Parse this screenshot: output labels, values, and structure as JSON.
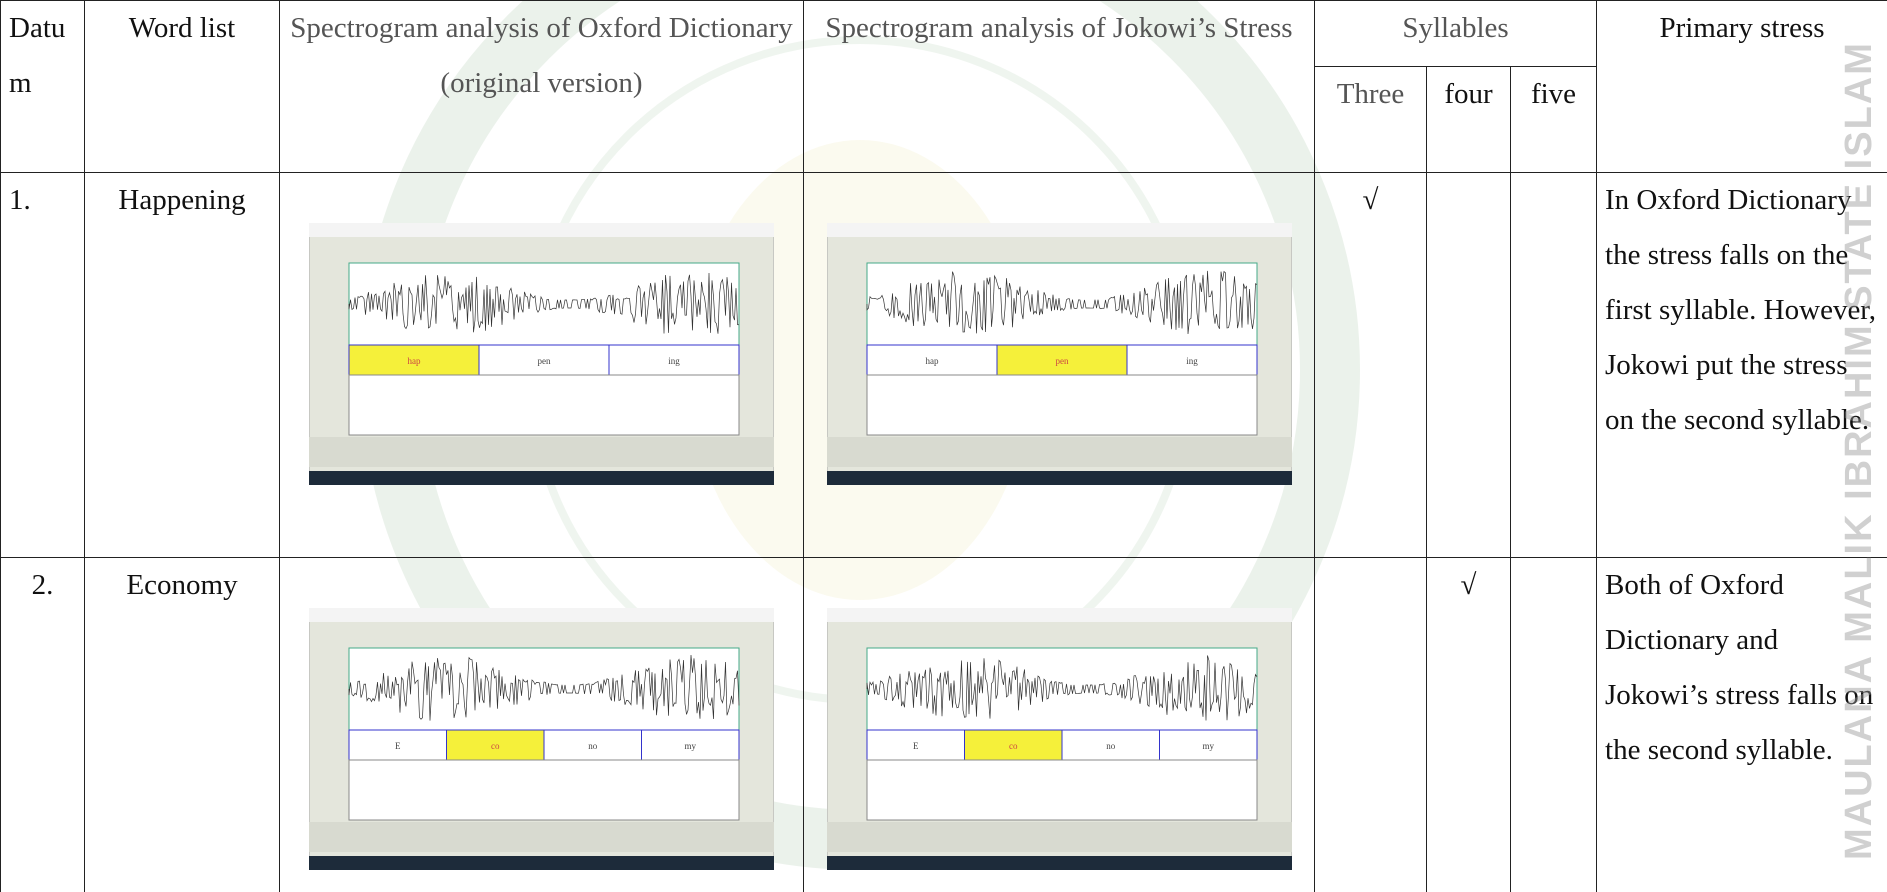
{
  "table": {
    "header": {
      "datum": "Datum",
      "word_list": "Word list",
      "oxford": "Spectrogram analysis of Oxford Dictionary (original version)",
      "jokowi": "Spectrogram analysis of Jokowi’s Stress",
      "syllables": "Syllables",
      "syllable_counts": [
        "Three",
        "four",
        "five"
      ],
      "primary_stress": "Primary stress"
    },
    "rows": [
      {
        "number": "1.",
        "word": "Happening",
        "oxford_syllables": [
          "hap",
          "pen",
          "ing"
        ],
        "oxford_stressed": 0,
        "jokowi_syllables": [
          "hap",
          "pen",
          "ing"
        ],
        "jokowi_stressed": 1,
        "checks": [
          "√",
          "",
          ""
        ],
        "primary_stress": "In Oxford Dictionary the stress falls on the first syllable. However, Jokowi put the stress on the second syllable."
      },
      {
        "number": "2.",
        "word": "Economy",
        "oxford_syllables": [
          "E",
          "co",
          "no",
          "my"
        ],
        "oxford_stressed": 1,
        "jokowi_syllables": [
          "E",
          "co",
          "no",
          "my"
        ],
        "jokowi_stressed": 1,
        "checks": [
          "",
          "√",
          ""
        ],
        "primary_stress": "Both of Oxford Dictionary and Jokowi’s stress falls on the second syllable."
      }
    ]
  },
  "watermark": "MAULANA MALIK IBRAHIM STATE ISLAM"
}
